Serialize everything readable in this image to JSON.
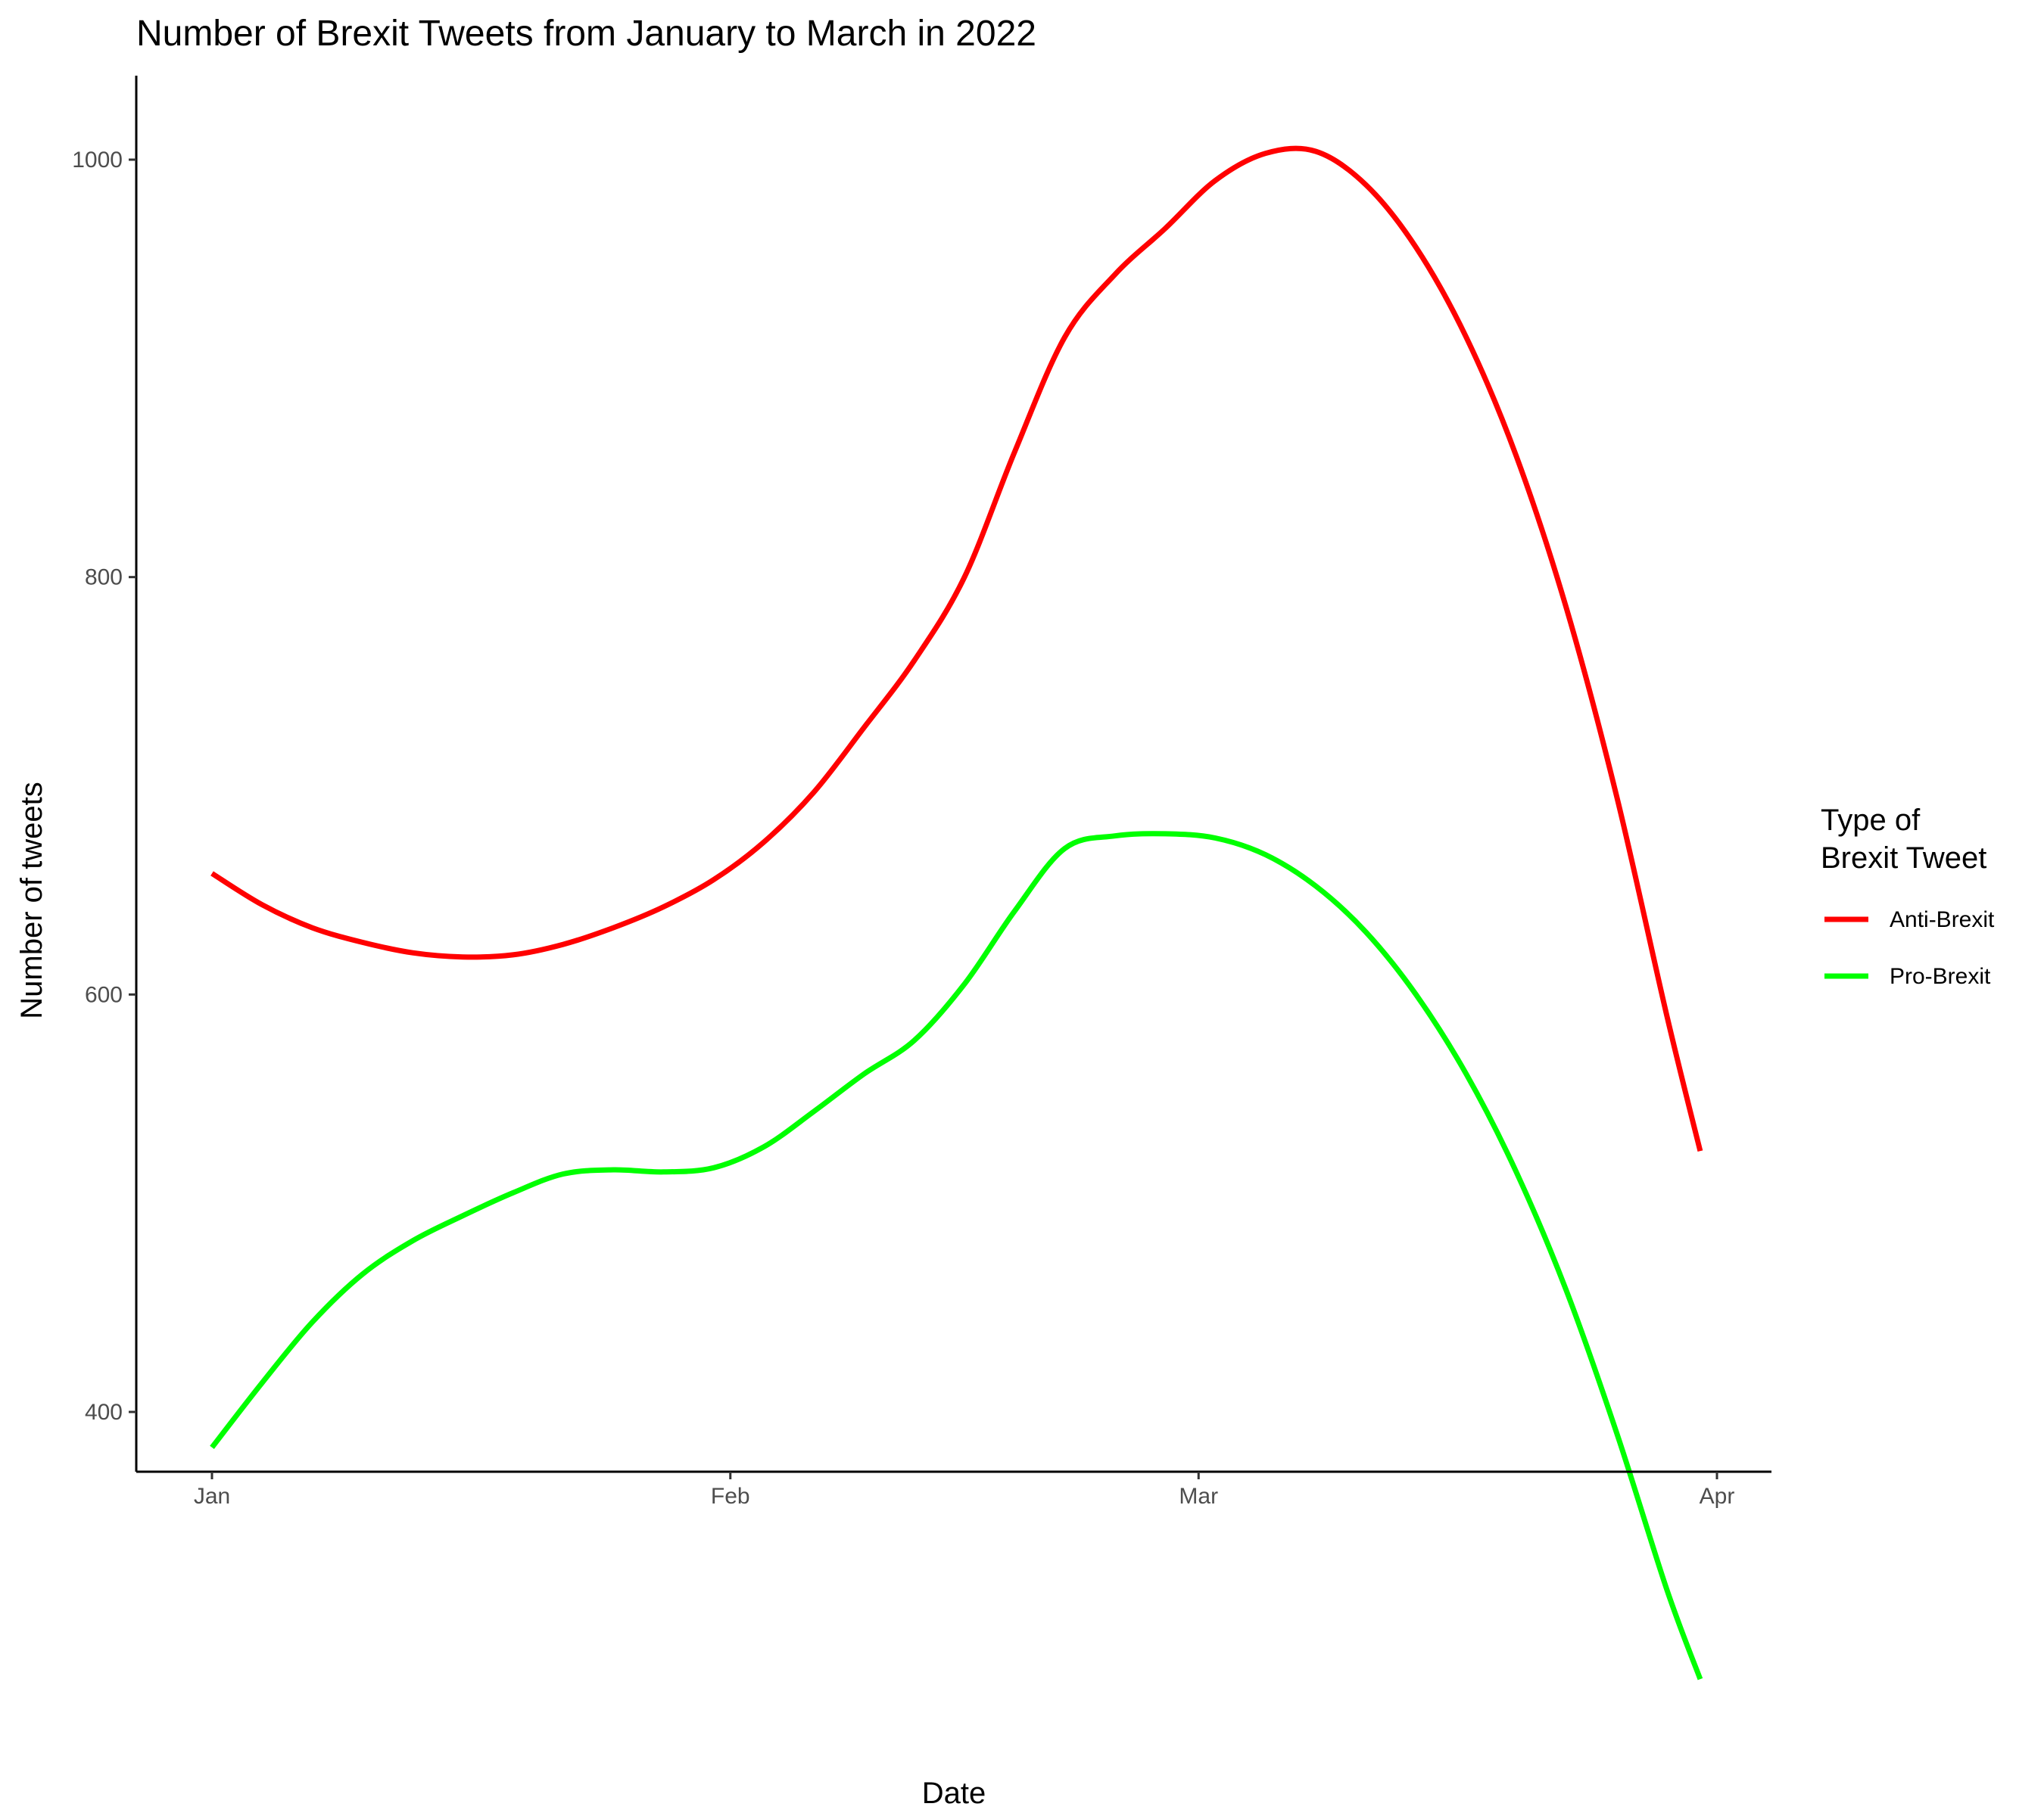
{
  "chart_data": {
    "type": "line",
    "title": "Number of Brexit Tweets from January to March in 2022",
    "xlabel": "Date",
    "ylabel": "Number of tweets",
    "x_ticks": [
      {
        "label": "Jan",
        "date": "2022-01-01"
      },
      {
        "label": "Feb",
        "date": "2022-02-01"
      },
      {
        "label": "Mar",
        "date": "2022-03-01"
      },
      {
        "label": "Apr",
        "date": "2022-04-01"
      }
    ],
    "y_ticks": [
      400,
      600,
      800,
      1000
    ],
    "xlim": [
      "2021-12-27",
      "2022-04-02"
    ],
    "ylim": [
      265,
      1040
    ],
    "grid": false,
    "legend": {
      "title": "Type of Brexit Tweet",
      "title_lines": [
        "Type of",
        "Brexit Tweet"
      ],
      "placement": "right"
    },
    "series": [
      {
        "name": "Anti-Brexit",
        "color": "#ff0000",
        "points": [
          [
            "2022-01-01",
            658
          ],
          [
            "2022-01-04",
            643
          ],
          [
            "2022-01-07",
            632
          ],
          [
            "2022-01-10",
            625
          ],
          [
            "2022-01-13",
            620
          ],
          [
            "2022-01-16",
            618
          ],
          [
            "2022-01-19",
            619
          ],
          [
            "2022-01-22",
            624
          ],
          [
            "2022-01-25",
            632
          ],
          [
            "2022-01-28",
            642
          ],
          [
            "2022-01-31",
            655
          ],
          [
            "2022-02-03",
            673
          ],
          [
            "2022-02-06",
            697
          ],
          [
            "2022-02-09",
            728
          ],
          [
            "2022-02-12",
            760
          ],
          [
            "2022-02-15",
            800
          ],
          [
            "2022-02-18",
            860
          ],
          [
            "2022-02-21",
            915
          ],
          [
            "2022-02-24",
            945
          ],
          [
            "2022-02-27",
            967
          ],
          [
            "2022-03-02",
            990
          ],
          [
            "2022-03-05",
            1003
          ],
          [
            "2022-03-08",
            1004
          ],
          [
            "2022-03-11",
            988
          ],
          [
            "2022-03-14",
            958
          ],
          [
            "2022-03-17",
            915
          ],
          [
            "2022-03-20",
            858
          ],
          [
            "2022-03-23",
            785
          ],
          [
            "2022-03-26",
            695
          ],
          [
            "2022-03-29",
            590
          ],
          [
            "2022-03-31",
            525
          ]
        ]
      },
      {
        "name": "Pro-Brexit",
        "color": "#00ff00",
        "points": [
          [
            "2022-01-01",
            383
          ],
          [
            "2022-01-04",
            414
          ],
          [
            "2022-01-07",
            443
          ],
          [
            "2022-01-10",
            466
          ],
          [
            "2022-01-13",
            482
          ],
          [
            "2022-01-16",
            494
          ],
          [
            "2022-01-19",
            505
          ],
          [
            "2022-01-22",
            514
          ],
          [
            "2022-01-25",
            516
          ],
          [
            "2022-01-28",
            515
          ],
          [
            "2022-01-31",
            517
          ],
          [
            "2022-02-03",
            527
          ],
          [
            "2022-02-06",
            544
          ],
          [
            "2022-02-09",
            562
          ],
          [
            "2022-02-12",
            578
          ],
          [
            "2022-02-15",
            605
          ],
          [
            "2022-02-18",
            640
          ],
          [
            "2022-02-21",
            670
          ],
          [
            "2022-02-24",
            676
          ],
          [
            "2022-02-27",
            677
          ],
          [
            "2022-03-02",
            675
          ],
          [
            "2022-03-05",
            667
          ],
          [
            "2022-03-08",
            652
          ],
          [
            "2022-03-11",
            630
          ],
          [
            "2022-03-14",
            600
          ],
          [
            "2022-03-17",
            562
          ],
          [
            "2022-03-20",
            515
          ],
          [
            "2022-03-23",
            458
          ],
          [
            "2022-03-26",
            390
          ],
          [
            "2022-03-29",
            315
          ],
          [
            "2022-03-31",
            272
          ]
        ]
      }
    ]
  }
}
